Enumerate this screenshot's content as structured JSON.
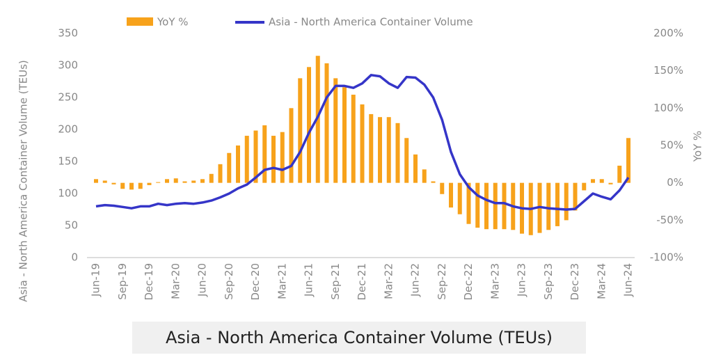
{
  "chart_data": {
    "type": "bar-line",
    "title": "Asia - North America Container Volume (TEUs)",
    "ylabel": "Asia - North America Container Volume (TEUs)",
    "y2label": "YoY %",
    "categories": [
      "Jun-19",
      null,
      null,
      "Sep-19",
      null,
      null,
      "Dec-19",
      null,
      null,
      "Mar-20",
      null,
      null,
      "Jun-20",
      null,
      null,
      "Sep-20",
      null,
      null,
      "Dec-20",
      null,
      null,
      "Mar-21",
      null,
      null,
      "Jun-21",
      null,
      null,
      "Sep-21",
      null,
      null,
      "Dec-21",
      null,
      null,
      "Mar-22",
      null,
      null,
      "Jun-22",
      null,
      null,
      "Sep-22",
      null,
      null,
      "Dec-22",
      null,
      null,
      "Mar-23",
      null,
      null,
      "Jun-23",
      null,
      null,
      "Sep-23",
      null,
      null,
      "Dec-23",
      null,
      null,
      "Mar-24",
      null,
      null,
      "Jun-24"
    ],
    "series": [
      {
        "name": "YoY %",
        "color": "#f7a21b",
        "kind": "bar",
        "axis": "y2",
        "values": [
          5,
          3,
          -2,
          -8,
          -9,
          -8,
          -3,
          1,
          5,
          6,
          2,
          3,
          5,
          12,
          25,
          40,
          50,
          63,
          70,
          77,
          63,
          68,
          100,
          140,
          155,
          170,
          160,
          140,
          128,
          118,
          105,
          92,
          88,
          88,
          80,
          60,
          38,
          18,
          2,
          -15,
          -33,
          -42,
          -55,
          -60,
          -62,
          -62,
          -62,
          -63,
          -68,
          -70,
          -67,
          -63,
          -58,
          -50,
          -37,
          -10,
          5,
          5,
          -2,
          23,
          60
        ]
      },
      {
        "name": "Asia - North America Container Volume",
        "color": "#3535c8",
        "kind": "line",
        "axis": "y",
        "values": [
          80,
          82,
          81,
          79,
          77,
          80,
          80,
          84,
          82,
          84,
          85,
          84,
          86,
          89,
          94,
          100,
          108,
          114,
          125,
          137,
          140,
          137,
          143,
          165,
          195,
          220,
          250,
          268,
          268,
          265,
          272,
          285,
          283,
          272,
          265,
          282,
          281,
          270,
          250,
          215,
          165,
          130,
          110,
          97,
          90,
          85,
          85,
          80,
          77,
          76,
          79,
          77,
          76,
          75,
          76,
          88,
          100,
          95,
          91,
          105,
          125
        ]
      }
    ],
    "ylim": [
      0,
      350
    ],
    "yticks": [
      0,
      50,
      100,
      150,
      200,
      250,
      300,
      350
    ],
    "y2lim": [
      -100,
      200
    ],
    "y2ticks": [
      {
        "value": -100,
        "label": "-100%"
      },
      {
        "value": -50,
        "label": "-50%"
      },
      {
        "value": 0,
        "label": "0%"
      },
      {
        "value": 50,
        "label": "50%"
      },
      {
        "value": 100,
        "label": "100%"
      },
      {
        "value": 150,
        "label": "150%"
      },
      {
        "value": 200,
        "label": "200%"
      }
    ]
  }
}
